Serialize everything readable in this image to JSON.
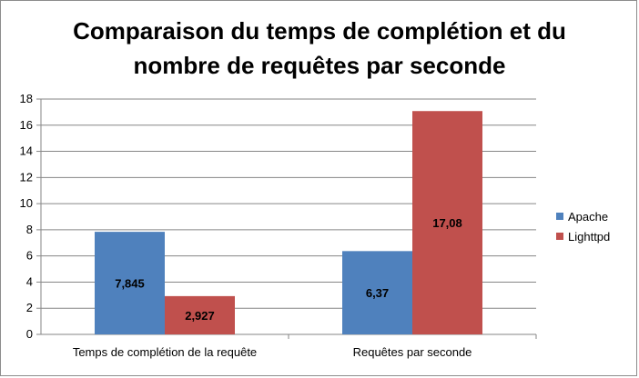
{
  "chart_data": {
    "type": "bar",
    "title": "Comparaison du temps de complétion et du\nnombre de requêtes par seconde",
    "categories": [
      "Temps de complétion de la requête",
      "Requêtes par seconde"
    ],
    "series": [
      {
        "name": "Apache",
        "values": [
          7.845,
          6.37
        ],
        "labels": [
          "7,845",
          "6,37"
        ],
        "color": "#4f81bd"
      },
      {
        "name": "Lighttpd",
        "values": [
          2.927,
          17.08
        ],
        "labels": [
          "2,927",
          "17,08"
        ],
        "color": "#c0504d"
      }
    ],
    "ylim": [
      0,
      18
    ],
    "yticks": [
      0,
      2,
      4,
      6,
      8,
      10,
      12,
      14,
      16,
      18
    ],
    "grid": true,
    "legend_position": "right"
  }
}
